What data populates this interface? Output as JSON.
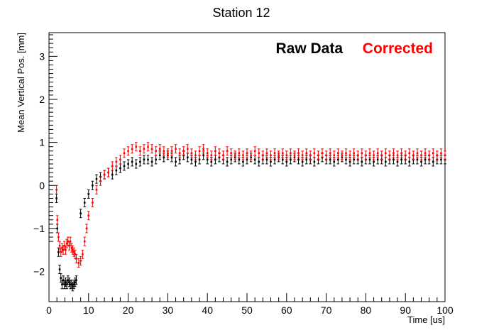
{
  "chart_data": {
    "type": "scatter",
    "title": "Station 12",
    "xlabel": "Time [us]",
    "ylabel": "Mean Vertical Pos. [mm]",
    "xlim": [
      0,
      100
    ],
    "ylim": [
      -2.7,
      3.55
    ],
    "x_ticks": [
      "0",
      "10",
      "20",
      "30",
      "40",
      "50",
      "60",
      "70",
      "80",
      "90",
      "100"
    ],
    "y_ticks": [
      "−2",
      "−1",
      "0",
      "1",
      "2",
      "3"
    ],
    "grid": false,
    "legend_position": "top-right",
    "colors": {
      "raw": "#000000",
      "corrected": "#ff0000"
    },
    "series": [
      {
        "name": "Raw Data",
        "color": "#000000",
        "points": [
          [
            1.9,
            -0.3
          ],
          [
            2.1,
            -1.0
          ],
          [
            2.4,
            -1.55
          ],
          [
            2.7,
            -1.95
          ],
          [
            3.0,
            -2.15
          ],
          [
            3.3,
            -2.3
          ],
          [
            3.6,
            -2.2
          ],
          [
            3.9,
            -2.3
          ],
          [
            4.2,
            -2.25
          ],
          [
            4.5,
            -2.3
          ],
          [
            4.8,
            -2.2
          ],
          [
            5.1,
            -2.25
          ],
          [
            5.4,
            -2.3
          ],
          [
            5.7,
            -2.3
          ],
          [
            6.0,
            -2.35
          ],
          [
            6.3,
            -2.3
          ],
          [
            6.6,
            -2.25
          ],
          [
            6.9,
            -2.2
          ],
          [
            8.0,
            -0.65
          ],
          [
            9.0,
            -0.4
          ],
          [
            10.0,
            -0.2
          ],
          [
            11.0,
            0.0
          ],
          [
            12.0,
            0.15
          ],
          [
            13.0,
            0.2
          ],
          [
            14.0,
            0.25
          ],
          [
            15.0,
            0.3
          ],
          [
            16.0,
            0.25
          ],
          [
            17.0,
            0.35
          ],
          [
            18.0,
            0.4
          ],
          [
            19.0,
            0.45
          ],
          [
            20.0,
            0.5
          ],
          [
            21.0,
            0.55
          ],
          [
            22.0,
            0.5
          ],
          [
            23.0,
            0.55
          ],
          [
            24.0,
            0.6
          ],
          [
            25.0,
            0.6
          ],
          [
            26.0,
            0.55
          ],
          [
            27.0,
            0.6
          ],
          [
            28.0,
            0.7
          ],
          [
            29.0,
            0.65
          ],
          [
            30.0,
            0.7
          ],
          [
            31.0,
            0.65
          ],
          [
            32.0,
            0.55
          ],
          [
            33.0,
            0.6
          ],
          [
            34.0,
            0.7
          ],
          [
            35.0,
            0.65
          ],
          [
            36.0,
            0.6
          ],
          [
            37.0,
            0.55
          ],
          [
            38.0,
            0.6
          ],
          [
            39.0,
            0.7
          ],
          [
            40.0,
            0.6
          ],
          [
            41.0,
            0.55
          ],
          [
            42.0,
            0.6
          ],
          [
            43.0,
            0.65
          ],
          [
            44.0,
            0.6
          ],
          [
            45.0,
            0.55
          ],
          [
            46.0,
            0.6
          ],
          [
            47.0,
            0.65
          ],
          [
            48.0,
            0.6
          ],
          [
            49.0,
            0.55
          ],
          [
            50.0,
            0.6
          ],
          [
            51.0,
            0.65
          ],
          [
            52.0,
            0.6
          ],
          [
            53.0,
            0.55
          ],
          [
            54.0,
            0.6
          ],
          [
            55.0,
            0.6
          ],
          [
            56.0,
            0.55
          ],
          [
            57.0,
            0.6
          ],
          [
            58.0,
            0.65
          ],
          [
            59.0,
            0.6
          ],
          [
            60.0,
            0.55
          ],
          [
            61.0,
            0.6
          ],
          [
            62.0,
            0.65
          ],
          [
            63.0,
            0.6
          ],
          [
            64.0,
            0.55
          ],
          [
            65.0,
            0.6
          ],
          [
            66.0,
            0.6
          ],
          [
            67.0,
            0.55
          ],
          [
            68.0,
            0.6
          ],
          [
            69.0,
            0.65
          ],
          [
            70.0,
            0.6
          ],
          [
            71.0,
            0.6
          ],
          [
            72.0,
            0.55
          ],
          [
            73.0,
            0.6
          ],
          [
            74.0,
            0.65
          ],
          [
            75.0,
            0.6
          ],
          [
            76.0,
            0.55
          ],
          [
            77.0,
            0.6
          ],
          [
            78.0,
            0.6
          ],
          [
            79.0,
            0.55
          ],
          [
            80.0,
            0.6
          ],
          [
            81.0,
            0.6
          ],
          [
            82.0,
            0.55
          ],
          [
            83.0,
            0.6
          ],
          [
            84.0,
            0.6
          ],
          [
            85.0,
            0.55
          ],
          [
            86.0,
            0.6
          ],
          [
            87.0,
            0.6
          ],
          [
            88.0,
            0.55
          ],
          [
            89.0,
            0.6
          ],
          [
            90.0,
            0.6
          ],
          [
            91.0,
            0.55
          ],
          [
            92.0,
            0.6
          ],
          [
            93.0,
            0.6
          ],
          [
            94.0,
            0.55
          ],
          [
            95.0,
            0.6
          ],
          [
            96.0,
            0.6
          ],
          [
            97.0,
            0.55
          ],
          [
            98.0,
            0.6
          ],
          [
            99.0,
            0.6
          ],
          [
            100.0,
            0.6
          ]
        ]
      },
      {
        "name": "Corrected",
        "color": "#ff0000",
        "points": [
          [
            1.9,
            -0.1
          ],
          [
            2.1,
            -0.8
          ],
          [
            2.4,
            -1.2
          ],
          [
            2.7,
            -1.4
          ],
          [
            3.0,
            -1.55
          ],
          [
            3.3,
            -1.45
          ],
          [
            3.6,
            -1.5
          ],
          [
            3.9,
            -1.4
          ],
          [
            4.2,
            -1.5
          ],
          [
            4.5,
            -1.35
          ],
          [
            4.8,
            -1.3
          ],
          [
            5.1,
            -1.4
          ],
          [
            5.4,
            -1.3
          ],
          [
            5.7,
            -1.45
          ],
          [
            6.0,
            -1.5
          ],
          [
            6.3,
            -1.55
          ],
          [
            6.6,
            -1.6
          ],
          [
            6.9,
            -1.7
          ],
          [
            7.5,
            -1.8
          ],
          [
            8.0,
            -1.75
          ],
          [
            8.5,
            -1.6
          ],
          [
            9.0,
            -1.3
          ],
          [
            9.5,
            -1.0
          ],
          [
            10.0,
            -0.7
          ],
          [
            11.0,
            -0.4
          ],
          [
            12.0,
            -0.1
          ],
          [
            13.0,
            0.1
          ],
          [
            14.0,
            0.25
          ],
          [
            15.0,
            0.3
          ],
          [
            16.0,
            0.45
          ],
          [
            17.0,
            0.55
          ],
          [
            18.0,
            0.6
          ],
          [
            19.0,
            0.75
          ],
          [
            20.0,
            0.8
          ],
          [
            21.0,
            0.85
          ],
          [
            22.0,
            0.9
          ],
          [
            23.0,
            0.8
          ],
          [
            24.0,
            0.85
          ],
          [
            25.0,
            0.9
          ],
          [
            26.0,
            0.85
          ],
          [
            27.0,
            0.8
          ],
          [
            28.0,
            0.85
          ],
          [
            29.0,
            0.8
          ],
          [
            30.0,
            0.75
          ],
          [
            31.0,
            0.8
          ],
          [
            32.0,
            0.85
          ],
          [
            33.0,
            0.75
          ],
          [
            34.0,
            0.8
          ],
          [
            35.0,
            0.85
          ],
          [
            36.0,
            0.75
          ],
          [
            37.0,
            0.7
          ],
          [
            38.0,
            0.8
          ],
          [
            39.0,
            0.85
          ],
          [
            40.0,
            0.75
          ],
          [
            41.0,
            0.7
          ],
          [
            42.0,
            0.8
          ],
          [
            43.0,
            0.75
          ],
          [
            44.0,
            0.7
          ],
          [
            45.0,
            0.8
          ],
          [
            46.0,
            0.75
          ],
          [
            47.0,
            0.7
          ],
          [
            48.0,
            0.75
          ],
          [
            49.0,
            0.7
          ],
          [
            50.0,
            0.75
          ],
          [
            51.0,
            0.7
          ],
          [
            52.0,
            0.8
          ],
          [
            53.0,
            0.75
          ],
          [
            54.0,
            0.7
          ],
          [
            55.0,
            0.75
          ],
          [
            56.0,
            0.7
          ],
          [
            57.0,
            0.75
          ],
          [
            58.0,
            0.7
          ],
          [
            59.0,
            0.75
          ],
          [
            60.0,
            0.7
          ],
          [
            61.0,
            0.75
          ],
          [
            62.0,
            0.7
          ],
          [
            63.0,
            0.75
          ],
          [
            64.0,
            0.7
          ],
          [
            65.0,
            0.75
          ],
          [
            66.0,
            0.7
          ],
          [
            67.0,
            0.75
          ],
          [
            68.0,
            0.7
          ],
          [
            69.0,
            0.75
          ],
          [
            70.0,
            0.7
          ],
          [
            71.0,
            0.75
          ],
          [
            72.0,
            0.7
          ],
          [
            73.0,
            0.75
          ],
          [
            74.0,
            0.7
          ],
          [
            75.0,
            0.75
          ],
          [
            76.0,
            0.7
          ],
          [
            77.0,
            0.75
          ],
          [
            78.0,
            0.7
          ],
          [
            79.0,
            0.75
          ],
          [
            80.0,
            0.7
          ],
          [
            81.0,
            0.75
          ],
          [
            82.0,
            0.7
          ],
          [
            83.0,
            0.75
          ],
          [
            84.0,
            0.7
          ],
          [
            85.0,
            0.75
          ],
          [
            86.0,
            0.7
          ],
          [
            87.0,
            0.75
          ],
          [
            88.0,
            0.7
          ],
          [
            89.0,
            0.75
          ],
          [
            90.0,
            0.7
          ],
          [
            91.0,
            0.75
          ],
          [
            92.0,
            0.7
          ],
          [
            93.0,
            0.75
          ],
          [
            94.0,
            0.7
          ],
          [
            95.0,
            0.75
          ],
          [
            96.0,
            0.7
          ],
          [
            97.0,
            0.75
          ],
          [
            98.0,
            0.7
          ],
          [
            99.0,
            0.75
          ],
          [
            100.0,
            0.7
          ]
        ]
      }
    ]
  }
}
